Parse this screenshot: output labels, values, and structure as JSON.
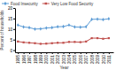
{
  "chart_data": {
    "type": "line",
    "x": [
      1995,
      1996,
      1997,
      1998,
      1999,
      2000,
      2001,
      2002,
      2003,
      2004,
      2005,
      2006,
      2007,
      2008,
      2009,
      2010,
      2011
    ],
    "series": [
      {
        "name": "Food Insecurity",
        "color": "#5b9bd5",
        "marker": "diamond",
        "values": [
          11.9,
          11.0,
          10.7,
          10.0,
          10.1,
          10.5,
          10.7,
          11.1,
          11.2,
          11.9,
          11.0,
          10.9,
          11.1,
          14.6,
          14.7,
          14.5,
          14.9
        ]
      },
      {
        "name": "Very Low Food Security",
        "color": "#c0504d",
        "marker": "square",
        "values": [
          4.1,
          3.7,
          3.5,
          3.3,
          3.0,
          3.1,
          3.3,
          3.5,
          3.5,
          3.9,
          3.9,
          3.8,
          4.1,
          5.7,
          5.7,
          5.4,
          5.7
        ]
      }
    ],
    "xlabel": "Year",
    "ylabel": "Percent of households",
    "xlim": [
      1994.5,
      2011.8
    ],
    "xticks": [
      1995,
      1996,
      1997,
      1998,
      1999,
      2000,
      2001,
      2002,
      2003,
      2004,
      2005,
      2006,
      2007,
      2008,
      2009,
      2010,
      2011
    ],
    "ylim": [
      -1,
      20
    ],
    "yticks": [
      0,
      5,
      10,
      15,
      20
    ],
    "grid": false,
    "legend": "upper left"
  }
}
